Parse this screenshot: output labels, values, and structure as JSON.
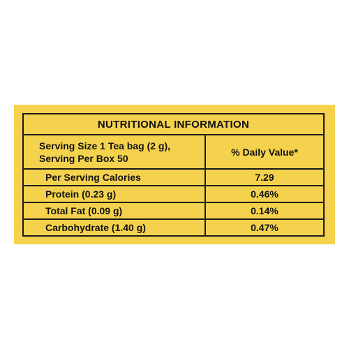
{
  "panel": {
    "background_color": "#f5d24d",
    "border_color": "#1a1a1a"
  },
  "table": {
    "title": "NUTRITIONAL INFORMATION",
    "serving_line1": "Serving Size 1 Tea bag (2 g),",
    "serving_line2": "Serving Per Box 50",
    "daily_value_header": "% Daily Value*",
    "rows": [
      {
        "label": "Per Serving Calories",
        "value": "7.29"
      },
      {
        "label": "Protein (0.23 g)",
        "value": "0.46%"
      },
      {
        "label": "Total Fat (0.09 g)",
        "value": "0.14%"
      },
      {
        "label": "Carbohydrate (1.40 g)",
        "value": "0.47%"
      }
    ]
  }
}
